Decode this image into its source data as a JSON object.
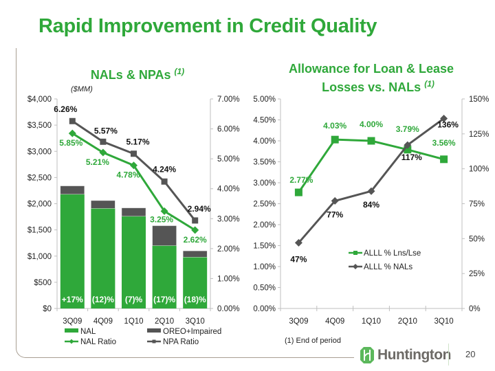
{
  "slide": {
    "title": "Rapid Improvement in Credit Quality",
    "page_number": "20",
    "footnote": "(1)  End of period",
    "logo_text": "Huntington",
    "colors": {
      "green": "#2fa83a",
      "gray": "#555555",
      "title_green": "#2fa83a"
    }
  },
  "chart_data": [
    {
      "type": "bar",
      "title": "NALs & NPAs",
      "title_sup": "(1)",
      "unit_label": "($MM)",
      "categories": [
        "3Q09",
        "4Q09",
        "1Q10",
        "2Q10",
        "3Q10"
      ],
      "y_left": {
        "min": 0,
        "max": 4000,
        "ticks": [
          "$0",
          "$500",
          "$1,000",
          "$1,500",
          "$2,000",
          "$2,500",
          "$3,000",
          "$3,500",
          "$4,000"
        ]
      },
      "y_right": {
        "min": 0,
        "max": 7,
        "ticks": [
          "0.00%",
          "1.00%",
          "2.00%",
          "3.00%",
          "4.00%",
          "5.00%",
          "6.00%",
          "7.00%"
        ]
      },
      "bar_series": [
        {
          "name": "NAL",
          "values": [
            2180,
            1910,
            1760,
            1200,
            980
          ],
          "color": "#2fa83a"
        },
        {
          "name": "OREO+Impaired",
          "values": [
            160,
            150,
            160,
            380,
            120
          ],
          "color": "#555555"
        }
      ],
      "bar_labels": [
        "+17%",
        "(12)%",
        "(7)%",
        "(17)%",
        "(18)%"
      ],
      "line_series": [
        {
          "name": "NAL Ratio",
          "values": [
            5.85,
            5.21,
            4.78,
            3.25,
            2.62
          ],
          "labels": [
            "5.85%",
            "5.21%",
            "4.78%",
            "3.25%",
            "2.62%"
          ],
          "color": "#2fa83a",
          "marker": "diamond"
        },
        {
          "name": "NPA Ratio",
          "values": [
            6.26,
            5.57,
            5.17,
            4.24,
            2.94
          ],
          "labels": [
            "6.26%",
            "5.57%",
            "5.17%",
            "4.24%",
            "2.94%"
          ],
          "color": "#555555",
          "marker": "square"
        }
      ],
      "legend": [
        "NAL",
        "OREO+Impaired",
        "NAL Ratio",
        "NPA Ratio"
      ],
      "legend_position": "bottom"
    },
    {
      "type": "line",
      "title_line1": "Allowance for Loan & Lease",
      "title_line2": "Losses vs. NALs",
      "title_sup": "(1)",
      "categories": [
        "3Q09",
        "4Q09",
        "1Q10",
        "2Q10",
        "3Q10"
      ],
      "y_left": {
        "min": 0,
        "max": 5,
        "ticks": [
          "0.00%",
          "0.50%",
          "1.00%",
          "1.50%",
          "2.00%",
          "2.50%",
          "3.00%",
          "3.50%",
          "4.00%",
          "4.50%",
          "5.00%"
        ]
      },
      "y_right": {
        "min": 0,
        "max": 150,
        "ticks": [
          "0%",
          "25%",
          "50%",
          "75%",
          "100%",
          "125%",
          "150%"
        ]
      },
      "series": [
        {
          "name": "ALLL % Lns/Lse",
          "axis": "left",
          "values": [
            2.77,
            4.03,
            4.0,
            3.79,
            3.56
          ],
          "labels": [
            "2.77%",
            "4.03%",
            "4.00%",
            "3.79%",
            "3.56%"
          ],
          "color": "#2fa83a",
          "marker": "square"
        },
        {
          "name": "ALLL % NALs",
          "axis": "right",
          "values": [
            47,
            77,
            84,
            117,
            136
          ],
          "labels": [
            "47%",
            "77%",
            "84%",
            "117%",
            "136%"
          ],
          "color": "#555555",
          "marker": "diamond"
        }
      ],
      "legend_position": "center"
    }
  ]
}
